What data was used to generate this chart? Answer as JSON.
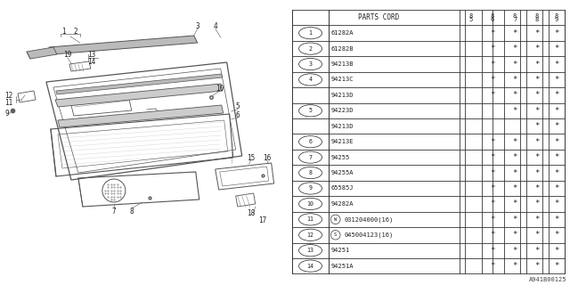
{
  "bg_color": "#ffffff",
  "diagram_ref": "A941B00125",
  "table": {
    "rows": [
      {
        "num": "1",
        "circle": true,
        "code": "61282A",
        "stars": [
          false,
          true,
          true,
          true,
          true
        ]
      },
      {
        "num": "2",
        "circle": true,
        "code": "61282B",
        "stars": [
          false,
          true,
          true,
          true,
          true
        ]
      },
      {
        "num": "3",
        "circle": true,
        "code": "94213B",
        "stars": [
          false,
          true,
          true,
          true,
          true
        ]
      },
      {
        "num": "4",
        "circle": true,
        "code": "94213C",
        "stars": [
          false,
          true,
          true,
          true,
          true
        ]
      },
      {
        "num": "",
        "circle": false,
        "code": "94213D",
        "stars": [
          false,
          true,
          true,
          true,
          true
        ]
      },
      {
        "num": "5",
        "circle": true,
        "code": "94223D",
        "stars": [
          false,
          false,
          true,
          true,
          true
        ]
      },
      {
        "num": "",
        "circle": false,
        "code": "94213D",
        "stars": [
          false,
          false,
          false,
          true,
          true
        ]
      },
      {
        "num": "6",
        "circle": true,
        "code": "94213E",
        "stars": [
          false,
          true,
          true,
          true,
          true
        ]
      },
      {
        "num": "7",
        "circle": true,
        "code": "94255",
        "stars": [
          false,
          true,
          true,
          true,
          true
        ]
      },
      {
        "num": "8",
        "circle": true,
        "code": "94255A",
        "stars": [
          false,
          true,
          true,
          true,
          true
        ]
      },
      {
        "num": "9",
        "circle": true,
        "code": "65585J",
        "stars": [
          false,
          true,
          true,
          true,
          true
        ]
      },
      {
        "num": "10",
        "circle": true,
        "code": "94282A",
        "stars": [
          false,
          true,
          true,
          true,
          true
        ]
      },
      {
        "num": "11",
        "circle": true,
        "code": "W031204000(16)",
        "stars": [
          false,
          true,
          true,
          true,
          true
        ]
      },
      {
        "num": "12",
        "circle": true,
        "code": "S045004123(16)",
        "stars": [
          false,
          true,
          true,
          true,
          true
        ]
      },
      {
        "num": "13",
        "circle": true,
        "code": "94251",
        "stars": [
          false,
          true,
          true,
          true,
          true
        ]
      },
      {
        "num": "14",
        "circle": true,
        "code": "94251A",
        "stars": [
          false,
          true,
          true,
          true,
          true
        ]
      }
    ]
  }
}
